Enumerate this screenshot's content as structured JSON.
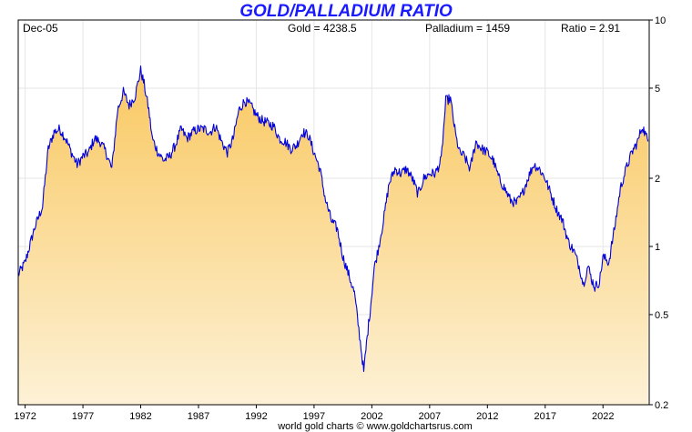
{
  "chart_data": {
    "type": "area",
    "title": "GOLD/PALLADIUM RATIO",
    "header": {
      "date": "Dec-05",
      "gold": "Gold = 4238.5",
      "palladium": "Palladium = 1459",
      "ratio": "Ratio = 2.91"
    },
    "x_ticks": [
      "1972",
      "1977",
      "1982",
      "1987",
      "1992",
      "1997",
      "2002",
      "2007",
      "2012",
      "2017",
      "2022"
    ],
    "y_ticks": [
      "10",
      "5",
      "2",
      "1",
      "0.5",
      "0.2"
    ],
    "y_tick_values": [
      10,
      5,
      2,
      1,
      0.5,
      0.2
    ],
    "y_scale": "log",
    "ylim": [
      0.2,
      10
    ],
    "xlim": [
      1971.4,
      2026.0
    ],
    "grid": true,
    "series": [
      {
        "color": "#0000dd",
        "fill_top": "#f9c860",
        "fill_bottom": "#fdf1d6",
        "x": [
          1971.4,
          1972.0,
          1972.8,
          1973.5,
          1974.0,
          1974.5,
          1975.0,
          1975.5,
          1976.0,
          1976.5,
          1977.0,
          1977.5,
          1978.0,
          1978.5,
          1979.0,
          1979.5,
          1980.0,
          1980.5,
          1981.0,
          1981.5,
          1982.0,
          1982.3,
          1982.7,
          1983.0,
          1983.5,
          1984.0,
          1984.5,
          1985.0,
          1985.5,
          1986.0,
          1986.5,
          1987.0,
          1987.5,
          1988.0,
          1988.5,
          1989.0,
          1989.5,
          1990.0,
          1990.5,
          1991.0,
          1991.5,
          1992.0,
          1992.5,
          1993.0,
          1993.5,
          1994.0,
          1994.5,
          1995.0,
          1995.5,
          1996.0,
          1996.5,
          1997.0,
          1997.5,
          1998.0,
          1998.5,
          1999.0,
          1999.5,
          2000.0,
          2000.5,
          2001.0,
          2001.3,
          2001.6,
          2001.9,
          2002.2,
          2002.6,
          2003.0,
          2003.5,
          2004.0,
          2004.5,
          2005.0,
          2005.5,
          2006.0,
          2006.5,
          2007.0,
          2007.5,
          2008.0,
          2008.4,
          2008.8,
          2009.0,
          2009.3,
          2009.6,
          2010.0,
          2010.5,
          2011.0,
          2011.5,
          2012.0,
          2012.5,
          2013.0,
          2013.5,
          2014.0,
          2014.5,
          2015.0,
          2015.5,
          2016.0,
          2016.5,
          2017.0,
          2017.5,
          2018.0,
          2018.5,
          2019.0,
          2019.5,
          2020.0,
          2020.3,
          2020.7,
          2021.0,
          2021.3,
          2021.7,
          2022.0,
          2022.5,
          2023.0,
          2023.5,
          2024.0,
          2024.5,
          2025.0,
          2025.4,
          2025.9
        ],
        "y": [
          0.75,
          0.85,
          1.2,
          1.5,
          2.7,
          3.2,
          3.3,
          3.0,
          2.6,
          2.3,
          2.5,
          2.6,
          3.0,
          2.9,
          2.6,
          2.2,
          4.0,
          4.8,
          4.2,
          4.6,
          6.0,
          5.2,
          4.0,
          3.0,
          2.6,
          2.4,
          2.5,
          2.8,
          3.3,
          3.0,
          3.2,
          3.3,
          3.3,
          3.2,
          3.4,
          2.9,
          2.6,
          3.0,
          4.0,
          4.4,
          4.2,
          3.8,
          3.6,
          3.5,
          3.4,
          3.0,
          2.9,
          2.7,
          2.8,
          3.2,
          3.1,
          2.6,
          2.2,
          1.6,
          1.3,
          1.2,
          0.9,
          0.75,
          0.62,
          0.38,
          0.28,
          0.4,
          0.55,
          0.8,
          1.0,
          1.3,
          1.9,
          2.2,
          2.1,
          2.2,
          2.0,
          1.7,
          2.0,
          2.1,
          2.1,
          2.4,
          4.4,
          4.5,
          3.8,
          3.0,
          2.6,
          2.5,
          2.2,
          2.9,
          2.7,
          2.6,
          2.4,
          2.0,
          1.8,
          1.6,
          1.55,
          1.7,
          2.0,
          2.3,
          2.2,
          2.0,
          1.7,
          1.45,
          1.3,
          1.05,
          0.95,
          0.8,
          0.68,
          0.82,
          0.72,
          0.66,
          0.7,
          0.9,
          0.85,
          1.2,
          1.8,
          2.2,
          2.6,
          2.9,
          3.4,
          2.91
        ]
      }
    ],
    "credit": "world gold charts © www.goldchartsrus.com"
  }
}
